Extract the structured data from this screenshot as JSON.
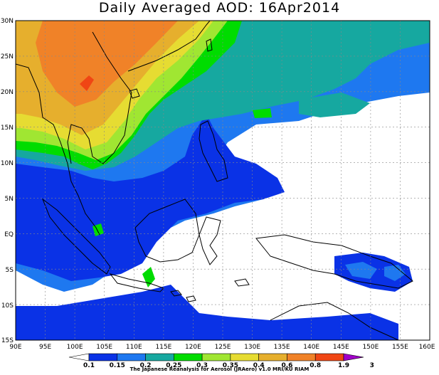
{
  "title": "Daily Averaged AOD: 16Apr2014",
  "credit": "The Japanese Reanalysis for Aerosol (JRAero) v1.0 MRI/KU RIAM",
  "map": {
    "lat_labels": [
      "30N",
      "25N",
      "20N",
      "15N",
      "10N",
      "5N",
      "EQ",
      "5S",
      "10S",
      "15S"
    ],
    "lon_labels": [
      "90E",
      "95E",
      "100E",
      "105E",
      "110E",
      "115E",
      "120E",
      "125E",
      "130E",
      "135E",
      "140E",
      "145E",
      "150E",
      "155E",
      "160E"
    ],
    "region": {
      "lon_min": 90,
      "lon_max": 160,
      "lat_min": -15,
      "lat_max": 30
    },
    "grid": "dotted"
  },
  "legend": {
    "labels": [
      "0.1",
      "0.15",
      "0.2",
      "0.25",
      "0.3",
      "0.35",
      "0.4",
      "0.6",
      "0.8",
      "1.9",
      "3"
    ],
    "colors": [
      "#ffffff",
      "#0a32e6",
      "#1e78f0",
      "#16a8a0",
      "#00dc00",
      "#a0e632",
      "#e6dc32",
      "#e6af2d",
      "#f08228",
      "#f04614",
      "#a000c8"
    ]
  }
}
